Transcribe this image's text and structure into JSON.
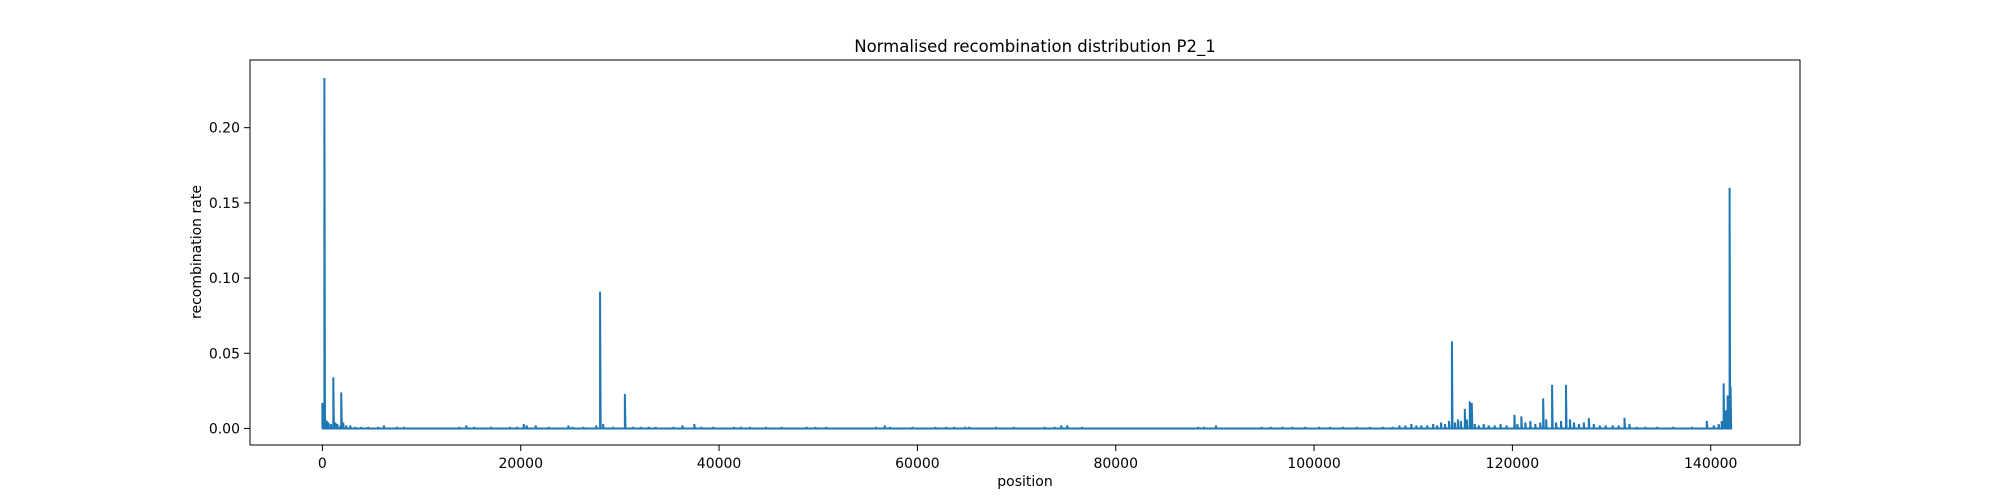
{
  "chart_data": {
    "type": "line",
    "title": "Normalised recombination distribution P2_1",
    "xlabel": "position",
    "ylabel": "recombination rate",
    "xlim": [
      -7300,
      149000
    ],
    "ylim": [
      -0.011,
      0.245
    ],
    "x_ticks": [
      0,
      20000,
      40000,
      60000,
      80000,
      100000,
      120000,
      140000
    ],
    "x_tick_labels": [
      "0",
      "20000",
      "40000",
      "60000",
      "80000",
      "100000",
      "120000",
      "140000"
    ],
    "y_ticks": [
      0.0,
      0.05,
      0.1,
      0.15,
      0.2
    ],
    "y_tick_labels": [
      "0.00",
      "0.05",
      "0.10",
      "0.15",
      "0.20"
    ],
    "grid": false,
    "legend": "none",
    "line_color": "#1f77b4",
    "series": [
      {
        "x_start": 0,
        "x_end": 142000,
        "baseline": 0.0,
        "spikes": [
          [
            0,
            0.017
          ],
          [
            100,
            0.009
          ],
          [
            200,
            0.233
          ],
          [
            300,
            0.006
          ],
          [
            450,
            0.005
          ],
          [
            600,
            0.004
          ],
          [
            850,
            0.003
          ],
          [
            1100,
            0.034
          ],
          [
            1300,
            0.004
          ],
          [
            1500,
            0.003
          ],
          [
            1800,
            0.002
          ],
          [
            1900,
            0.024
          ],
          [
            2100,
            0.004
          ],
          [
            2400,
            0.002
          ],
          [
            2800,
            0.002
          ],
          [
            3300,
            0.001
          ],
          [
            3900,
            0.001
          ],
          [
            4600,
            0.001
          ],
          [
            5600,
            0.001
          ],
          [
            6200,
            0.002
          ],
          [
            7500,
            0.001
          ],
          [
            8200,
            0.001
          ],
          [
            13800,
            0.001
          ],
          [
            14500,
            0.002
          ],
          [
            15300,
            0.001
          ],
          [
            17000,
            0.001
          ],
          [
            18900,
            0.001
          ],
          [
            19600,
            0.001
          ],
          [
            20300,
            0.003
          ],
          [
            20600,
            0.002
          ],
          [
            21500,
            0.002
          ],
          [
            22800,
            0.001
          ],
          [
            24800,
            0.002
          ],
          [
            25200,
            0.001
          ],
          [
            26300,
            0.001
          ],
          [
            27600,
            0.002
          ],
          [
            28000,
            0.091
          ],
          [
            28300,
            0.003
          ],
          [
            29300,
            0.001
          ],
          [
            30500,
            0.023
          ],
          [
            31300,
            0.001
          ],
          [
            32100,
            0.001
          ],
          [
            32900,
            0.001
          ],
          [
            33600,
            0.001
          ],
          [
            35400,
            0.001
          ],
          [
            36300,
            0.002
          ],
          [
            37500,
            0.003
          ],
          [
            38200,
            0.001
          ],
          [
            39400,
            0.001
          ],
          [
            41500,
            0.001
          ],
          [
            42200,
            0.001
          ],
          [
            43100,
            0.001
          ],
          [
            44700,
            0.001
          ],
          [
            46300,
            0.001
          ],
          [
            48800,
            0.001
          ],
          [
            49700,
            0.001
          ],
          [
            50800,
            0.001
          ],
          [
            55800,
            0.001
          ],
          [
            56700,
            0.002
          ],
          [
            57200,
            0.001
          ],
          [
            59500,
            0.001
          ],
          [
            61800,
            0.001
          ],
          [
            62900,
            0.001
          ],
          [
            63700,
            0.001
          ],
          [
            64800,
            0.001
          ],
          [
            65200,
            0.001
          ],
          [
            67900,
            0.001
          ],
          [
            69700,
            0.001
          ],
          [
            72800,
            0.001
          ],
          [
            73800,
            0.001
          ],
          [
            74500,
            0.002
          ],
          [
            75100,
            0.002
          ],
          [
            76600,
            0.001
          ],
          [
            88300,
            0.001
          ],
          [
            88900,
            0.001
          ],
          [
            90100,
            0.002
          ],
          [
            94700,
            0.001
          ],
          [
            95600,
            0.001
          ],
          [
            96800,
            0.001
          ],
          [
            97800,
            0.001
          ],
          [
            99100,
            0.001
          ],
          [
            100500,
            0.001
          ],
          [
            101600,
            0.001
          ],
          [
            102900,
            0.001
          ],
          [
            104300,
            0.001
          ],
          [
            105600,
            0.001
          ],
          [
            106900,
            0.001
          ],
          [
            107900,
            0.001
          ],
          [
            108600,
            0.002
          ],
          [
            109200,
            0.002
          ],
          [
            109800,
            0.003
          ],
          [
            110300,
            0.002
          ],
          [
            110800,
            0.002
          ],
          [
            111400,
            0.002
          ],
          [
            112000,
            0.003
          ],
          [
            112400,
            0.002
          ],
          [
            112800,
            0.004
          ],
          [
            113200,
            0.003
          ],
          [
            113600,
            0.005
          ],
          [
            113900,
            0.058
          ],
          [
            114200,
            0.004
          ],
          [
            114500,
            0.006
          ],
          [
            114800,
            0.005
          ],
          [
            115200,
            0.013
          ],
          [
            115400,
            0.006
          ],
          [
            115700,
            0.018
          ],
          [
            115900,
            0.017
          ],
          [
            116200,
            0.003
          ],
          [
            116600,
            0.002
          ],
          [
            117100,
            0.003
          ],
          [
            117600,
            0.002
          ],
          [
            118200,
            0.002
          ],
          [
            118800,
            0.003
          ],
          [
            119400,
            0.002
          ],
          [
            120200,
            0.009
          ],
          [
            120500,
            0.003
          ],
          [
            120900,
            0.008
          ],
          [
            121300,
            0.004
          ],
          [
            121800,
            0.005
          ],
          [
            122300,
            0.003
          ],
          [
            122800,
            0.004
          ],
          [
            123100,
            0.02
          ],
          [
            123400,
            0.006
          ],
          [
            124000,
            0.029
          ],
          [
            124400,
            0.004
          ],
          [
            124900,
            0.005
          ],
          [
            125400,
            0.029
          ],
          [
            125800,
            0.006
          ],
          [
            126200,
            0.004
          ],
          [
            126700,
            0.003
          ],
          [
            127200,
            0.004
          ],
          [
            127700,
            0.007
          ],
          [
            128200,
            0.003
          ],
          [
            128800,
            0.002
          ],
          [
            129400,
            0.002
          ],
          [
            130100,
            0.002
          ],
          [
            130700,
            0.002
          ],
          [
            131300,
            0.007
          ],
          [
            131800,
            0.003
          ],
          [
            132500,
            0.001
          ],
          [
            133400,
            0.001
          ],
          [
            134600,
            0.001
          ],
          [
            136200,
            0.001
          ],
          [
            138100,
            0.001
          ],
          [
            139600,
            0.005
          ],
          [
            140300,
            0.002
          ],
          [
            140800,
            0.003
          ],
          [
            141100,
            0.005
          ],
          [
            141300,
            0.03
          ],
          [
            141500,
            0.012
          ],
          [
            141700,
            0.022
          ],
          [
            141900,
            0.16
          ],
          [
            142000,
            0.028
          ]
        ]
      }
    ]
  }
}
